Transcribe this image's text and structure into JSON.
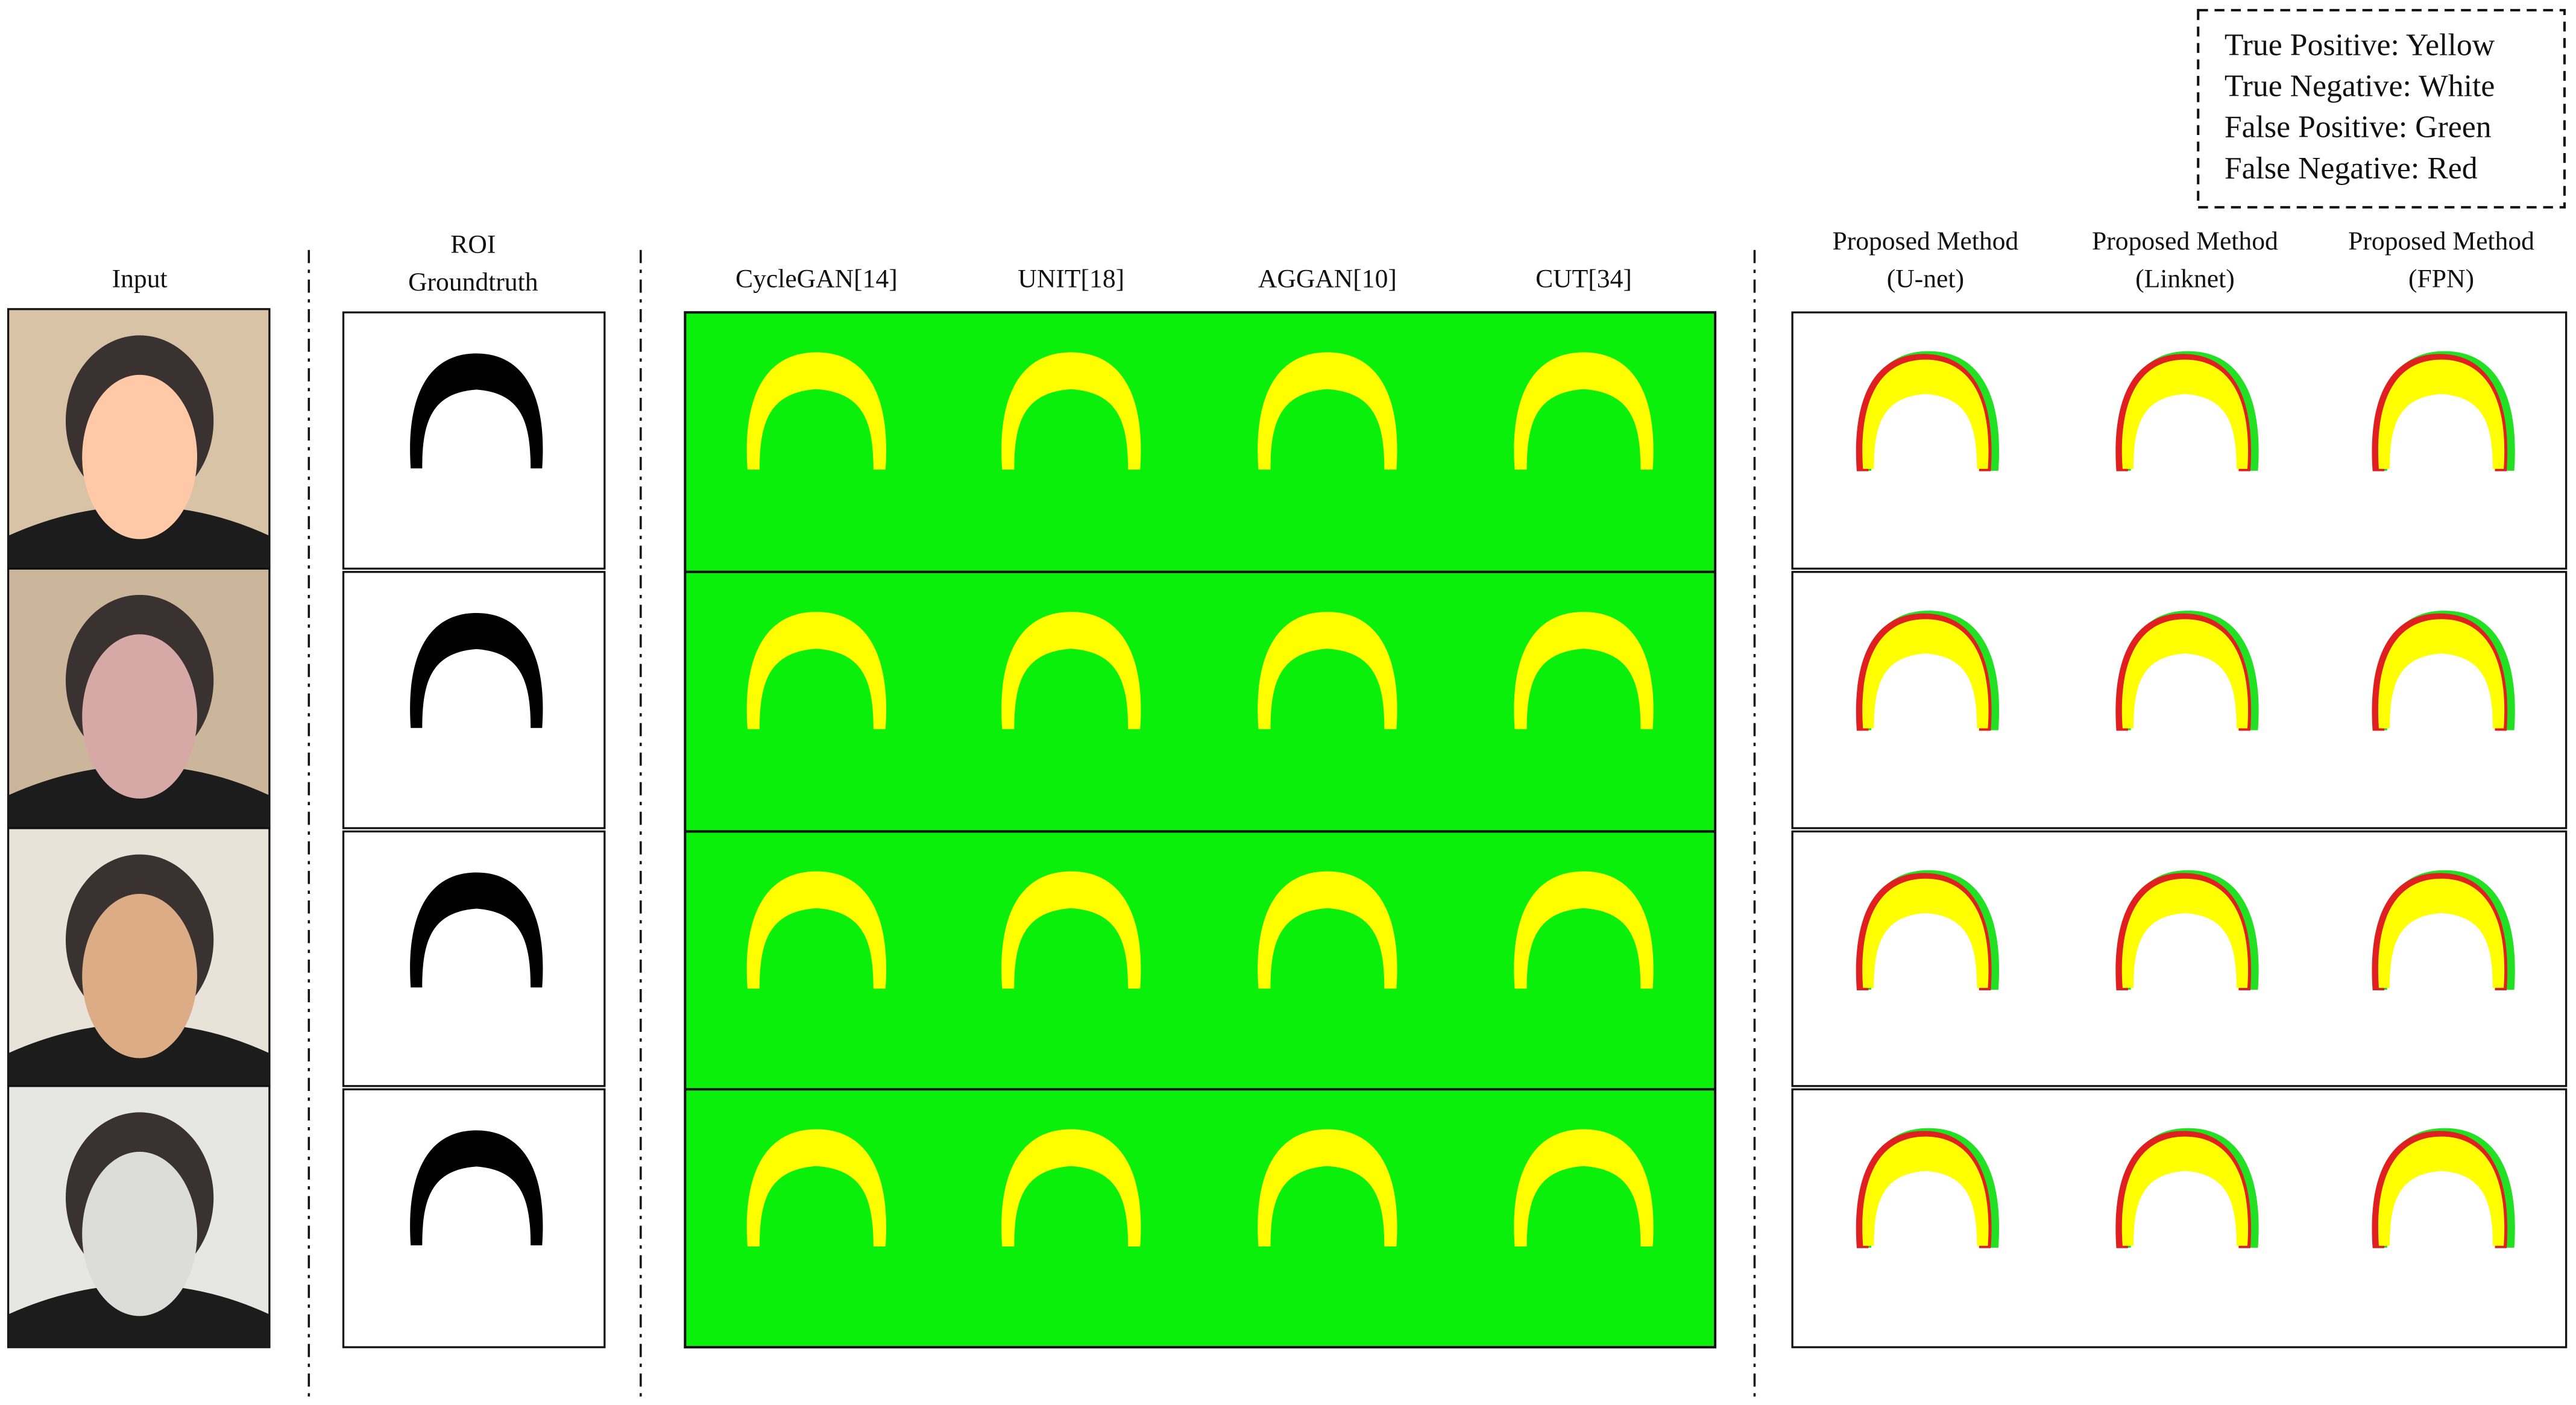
{
  "legend": [
    "True Positive: Yellow",
    "True Negative: White",
    "False Positive: Green",
    "False Negative: Red"
  ],
  "columns": {
    "input": [
      "Input"
    ],
    "groundtruth": [
      "ROI",
      "Groundtruth"
    ],
    "baselines": [
      [
        "CycleGAN[14]"
      ],
      [
        "UNIT[18]"
      ],
      [
        "AGGAN[10]"
      ],
      [
        "CUT[34]"
      ]
    ],
    "proposed": [
      [
        "Proposed Method",
        "(U-net)"
      ],
      [
        "Proposed Method",
        "(Linknet)"
      ],
      [
        "Proposed Method",
        "(FPN)"
      ]
    ]
  }
}
